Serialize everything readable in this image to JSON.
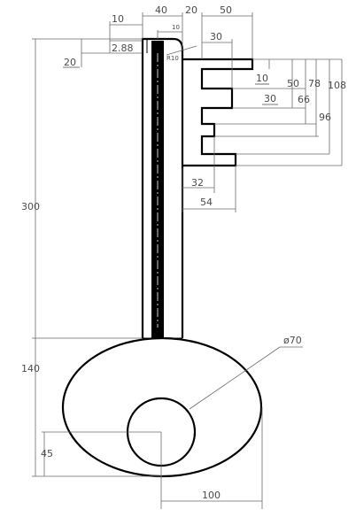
{
  "dimensions": {
    "top_10": "10",
    "top_40": "40",
    "top_20": "20",
    "top_50": "50",
    "top_small_10": "10",
    "width_2_88": "2.88",
    "radius_r10": "R10",
    "left_20": "20",
    "bit_30_top": "30",
    "right_10": "10",
    "right_30": "30",
    "right_50": "50",
    "right_66": "66",
    "right_78": "78",
    "right_96": "96",
    "right_108": "108",
    "bottom_32": "32",
    "bottom_54": "54",
    "shank_300": "300",
    "bow_140": "140",
    "hole_diameter": "ø70",
    "hole_offset_45": "45",
    "bow_width_100": "100"
  },
  "colors": {
    "outline": "#000000",
    "dimension": "#6a6a6a",
    "text": "#4a4a4a"
  }
}
